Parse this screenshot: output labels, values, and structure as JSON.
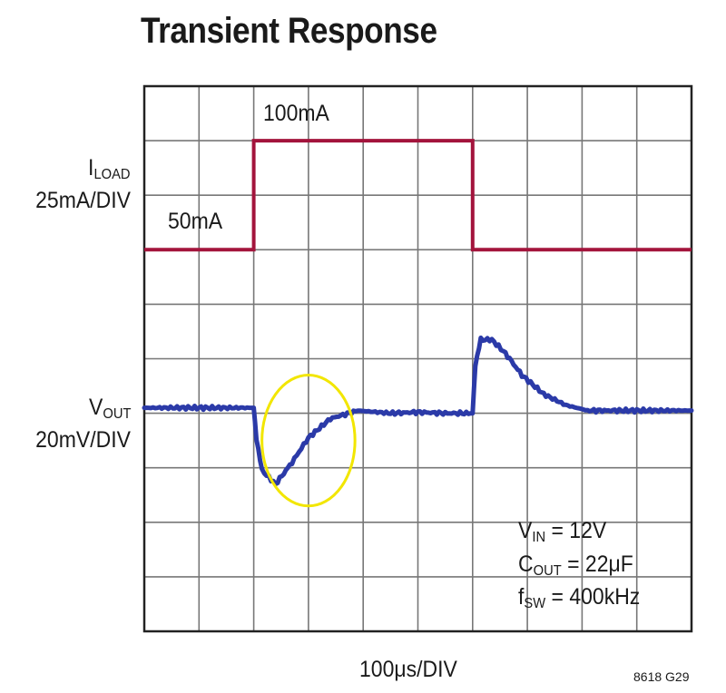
{
  "chart_data": {
    "type": "line",
    "title": "Transient Response",
    "xlabel": "100μs/DIV",
    "figure_id": "8618 G29",
    "x_divisions": 10,
    "y_divisions": 10,
    "series": [
      {
        "name": "I_LOAD",
        "channel_label": "I",
        "channel_sub": "LOAD",
        "scale": "25mA/DIV",
        "color": "#a3143c",
        "units": "mA",
        "x": [
          0,
          2,
          2,
          6,
          6,
          10
        ],
        "y": [
          50,
          50,
          100,
          100,
          50,
          50
        ],
        "annotations": [
          "50mA",
          "100mA"
        ]
      },
      {
        "name": "V_OUT",
        "channel_label": "V",
        "channel_sub": "OUT",
        "scale": "20mV/DIV",
        "color": "#2b3aa8",
        "x_units": "div",
        "y_units": "div",
        "x": [
          0,
          2,
          2.05,
          2.15,
          2.4,
          2.7,
          3.0,
          3.4,
          3.9,
          4.5,
          5.0,
          5.5,
          6.0,
          6.05,
          6.15,
          6.35,
          6.6,
          6.9,
          7.3,
          7.7,
          8.1,
          8.6,
          9.2,
          10
        ],
        "y": [
          4.1,
          4.1,
          3.55,
          2.95,
          2.7,
          3.1,
          3.55,
          3.9,
          4.05,
          4.0,
          4.02,
          4.0,
          4.0,
          4.9,
          5.35,
          5.35,
          5.1,
          4.7,
          4.35,
          4.15,
          4.05,
          4.05,
          4.05,
          4.05
        ]
      }
    ],
    "highlight": {
      "shape": "ellipse",
      "color": "#f2e600",
      "cx": 3.0,
      "cy": 3.5,
      "rx": 0.85,
      "ry": 1.2
    },
    "conditions": [
      {
        "sym": "V",
        "sub": "IN",
        "rest": " = 12V"
      },
      {
        "sym": "C",
        "sub": "OUT",
        "rest": " = 22μF"
      },
      {
        "sym": "f",
        "sub": "SW",
        "rest": " = 400kHz"
      }
    ]
  }
}
